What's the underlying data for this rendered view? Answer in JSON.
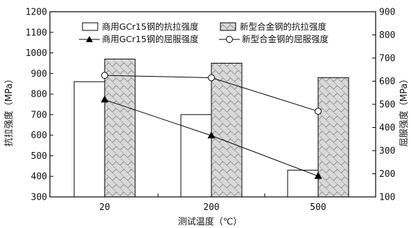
{
  "chart_data": {
    "type": "bar",
    "categories": [
      "20",
      "200",
      "500"
    ],
    "xlabel": "测试温度（℃）",
    "ylabel_left": "抗拉强度（MPa）",
    "ylabel_right": "屈服强度（MPa）",
    "ylim_left": [
      300,
      1200
    ],
    "ylim_right": [
      100,
      900
    ],
    "yticks_left": [
      "300",
      "400",
      "500",
      "600",
      "700",
      "800",
      "900",
      "1000",
      "1100",
      "1200"
    ],
    "yticks_right": [
      "100",
      "200",
      "300",
      "400",
      "500",
      "600",
      "700",
      "800",
      "900"
    ],
    "grid": false,
    "legend_position": "top",
    "series": [
      {
        "name": "商用GCr15钢的抗拉强度",
        "kind": "bar",
        "axis": "left",
        "style": "open",
        "values": [
          860,
          700,
          430
        ]
      },
      {
        "name": "新型合金钢的抗拉强度",
        "kind": "bar",
        "axis": "left",
        "style": "hatched",
        "values": [
          970,
          950,
          880
        ]
      },
      {
        "name": "商用GCr15钢的屈服强度",
        "kind": "line",
        "axis": "right",
        "marker": "filled-triangle",
        "values": [
          520,
          365,
          190
        ]
      },
      {
        "name": "新型合金钢的屈服强度",
        "kind": "line",
        "axis": "right",
        "marker": "open-circle",
        "values": [
          625,
          615,
          470
        ]
      }
    ]
  }
}
